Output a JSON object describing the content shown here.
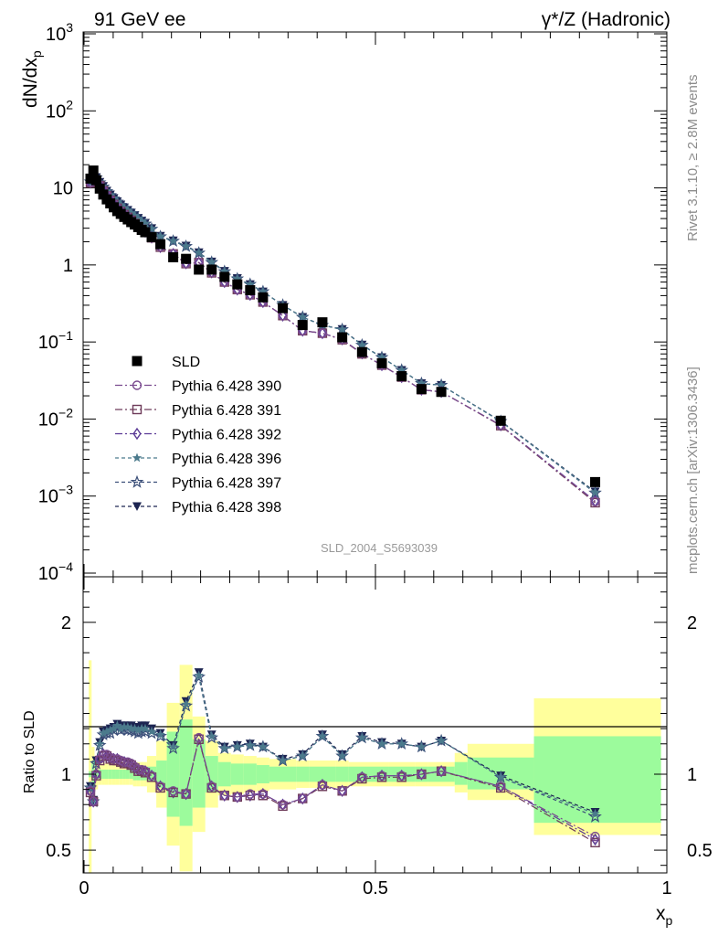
{
  "header": {
    "left_title": "91 GeV ee",
    "right_title": "γ*/Z (Hadronic)"
  },
  "side_text": {
    "rivet": "Rivet 3.1.10, ≥ 2.8M events",
    "mcplots": "mcplots.cern.ch [arXiv:1306.3436]"
  },
  "watermark": "SLD_2004_S5693039",
  "axes": {
    "ylabel_main": "dN/dx",
    "ylabel_main_sub": "p",
    "ylabel_ratio": "Ratio to SLD",
    "xlabel": "x",
    "xlabel_sub": "p",
    "x_ticks": [
      "0",
      "0.5",
      "1"
    ],
    "y_main_ticks": [
      {
        "base": "10",
        "exp": "3"
      },
      {
        "base": "10",
        "exp": "2"
      },
      {
        "base": "10",
        "exp": ""
      },
      {
        "base": "1",
        "exp": ""
      },
      {
        "base": "10",
        "exp": "−1"
      },
      {
        "base": "10",
        "exp": "−2"
      },
      {
        "base": "10",
        "exp": "−3"
      },
      {
        "base": "10",
        "exp": "−4"
      }
    ],
    "y_ratio_ticks": [
      "2",
      "1",
      "0.5"
    ]
  },
  "legend": [
    {
      "label": "SLD",
      "marker": "filled-square",
      "color": "#000000",
      "dash": ""
    },
    {
      "label": "Pythia 6.428 390",
      "marker": "open-circle",
      "color": "#7a4a8f",
      "dash": "8,3,2,3"
    },
    {
      "label": "Pythia 6.428 391",
      "marker": "open-square",
      "color": "#6e3b5a",
      "dash": "8,3,2,3"
    },
    {
      "label": "Pythia 6.428 392",
      "marker": "open-diamond",
      "color": "#5b3a96",
      "dash": "8,3,2,3"
    },
    {
      "label": "Pythia 6.428 396",
      "marker": "filled-star",
      "color": "#4b7a8c",
      "dash": "4,3"
    },
    {
      "label": "Pythia 6.428 397",
      "marker": "open-star",
      "color": "#3a4e78",
      "dash": "4,3"
    },
    {
      "label": "Pythia 6.428 398",
      "marker": "filled-triangle-down",
      "color": "#1c2451",
      "dash": "4,3"
    }
  ],
  "chart_data": {
    "type": "scatter",
    "title": "91 GeV ee",
    "xlabel": "x_p",
    "ylabel": "dN/dx_p",
    "xlim": [
      0,
      1
    ],
    "ylim": [
      0.0001,
      1000
    ],
    "y_scale": "log",
    "ratio_ylabel": "Ratio to SLD",
    "ratio_ylim": [
      0.35,
      2.3
    ],
    "x": [
      0.011,
      0.016,
      0.021,
      0.027,
      0.033,
      0.039,
      0.045,
      0.051,
      0.057,
      0.063,
      0.069,
      0.075,
      0.081,
      0.087,
      0.093,
      0.099,
      0.105,
      0.116,
      0.131,
      0.153,
      0.175,
      0.197,
      0.219,
      0.241,
      0.263,
      0.285,
      0.307,
      0.341,
      0.375,
      0.409,
      0.443,
      0.477,
      0.511,
      0.545,
      0.579,
      0.613,
      0.715,
      0.877
    ],
    "series": [
      {
        "name": "SLD",
        "values": [
          13.2,
          16.8,
          12.6,
          9.8,
          8.2,
          7.1,
          6.3,
          5.6,
          5.0,
          4.6,
          4.2,
          3.9,
          3.6,
          3.35,
          3.1,
          2.85,
          2.66,
          2.3,
          1.86,
          1.26,
          1.2,
          0.87,
          0.87,
          0.7,
          0.56,
          0.47,
          0.38,
          0.275,
          0.166,
          0.18,
          0.115,
          0.074,
          0.053,
          0.036,
          0.0245,
          0.0225,
          0.0095,
          0.00152
        ]
      },
      {
        "name": "Pythia 6.428 390",
        "values": [
          11.8,
          13.8,
          12.6,
          10.8,
          9.3,
          8.0,
          7.0,
          6.2,
          5.5,
          5.0,
          4.55,
          4.2,
          3.85,
          3.5,
          3.2,
          2.95,
          2.72,
          2.28,
          1.72,
          1.4,
          1.05,
          1.08,
          0.8,
          0.6,
          0.48,
          0.41,
          0.33,
          0.22,
          0.14,
          0.13,
          0.108,
          0.071,
          0.05,
          0.035,
          0.024,
          0.0225,
          0.0083,
          0.00085
        ]
      },
      {
        "name": "Pythia 6.428 391",
        "values": [
          11.6,
          13.7,
          12.5,
          10.7,
          9.2,
          7.9,
          6.9,
          6.1,
          5.45,
          4.95,
          4.5,
          4.15,
          3.8,
          3.45,
          3.15,
          2.9,
          2.68,
          2.25,
          1.7,
          1.39,
          1.04,
          1.07,
          0.79,
          0.6,
          0.48,
          0.41,
          0.33,
          0.22,
          0.14,
          0.13,
          0.107,
          0.07,
          0.05,
          0.035,
          0.024,
          0.0225,
          0.0082,
          0.00082
        ]
      },
      {
        "name": "Pythia 6.428 392",
        "values": [
          11.7,
          13.8,
          12.6,
          10.8,
          9.25,
          7.95,
          6.95,
          6.15,
          5.5,
          4.98,
          4.52,
          4.18,
          3.82,
          3.48,
          3.18,
          2.92,
          2.7,
          2.27,
          1.71,
          1.39,
          1.05,
          1.07,
          0.8,
          0.6,
          0.48,
          0.41,
          0.33,
          0.22,
          0.14,
          0.13,
          0.108,
          0.071,
          0.05,
          0.035,
          0.024,
          0.0225,
          0.0083,
          0.00086
        ]
      },
      {
        "name": "Pythia 6.428 396",
        "values": [
          12.1,
          13.9,
          13.6,
          11.8,
          10.4,
          9.1,
          8.1,
          7.3,
          6.6,
          6.0,
          5.5,
          5.1,
          4.7,
          4.35,
          4.0,
          3.7,
          3.45,
          2.95,
          2.35,
          2.05,
          1.75,
          1.44,
          1.09,
          0.82,
          0.66,
          0.56,
          0.45,
          0.3,
          0.21,
          0.165,
          0.145,
          0.091,
          0.063,
          0.043,
          0.029,
          0.0275,
          0.0093,
          0.00112
        ]
      },
      {
        "name": "Pythia 6.428 397",
        "values": [
          12.0,
          13.8,
          13.5,
          11.7,
          10.3,
          9.0,
          8.0,
          7.2,
          6.55,
          5.95,
          5.45,
          5.05,
          4.65,
          4.3,
          3.95,
          3.65,
          3.4,
          2.92,
          2.33,
          2.04,
          1.74,
          1.43,
          1.08,
          0.82,
          0.66,
          0.56,
          0.45,
          0.3,
          0.21,
          0.165,
          0.145,
          0.091,
          0.063,
          0.043,
          0.029,
          0.0275,
          0.0093,
          0.0011
        ]
      },
      {
        "name": "Pythia 6.428 398",
        "values": [
          12.2,
          14.0,
          13.7,
          11.9,
          10.5,
          9.15,
          8.15,
          7.35,
          6.65,
          6.05,
          5.55,
          5.15,
          4.75,
          4.4,
          4.05,
          3.75,
          3.5,
          2.98,
          2.37,
          2.07,
          1.77,
          1.45,
          1.1,
          0.83,
          0.67,
          0.56,
          0.45,
          0.3,
          0.21,
          0.166,
          0.146,
          0.092,
          0.063,
          0.043,
          0.029,
          0.0275,
          0.0094,
          0.00114
        ]
      }
    ],
    "ratio_series": [
      {
        "name": "Pythia 6.428 390",
        "values": [
          0.89,
          0.82,
          1.0,
          1.1,
          1.13,
          1.13,
          1.11,
          1.1,
          1.1,
          1.09,
          1.08,
          1.08,
          1.07,
          1.05,
          1.03,
          1.03,
          1.02,
          0.99,
          0.92,
          0.89,
          0.87,
          1.24,
          0.92,
          0.86,
          0.85,
          0.87,
          0.87,
          0.8,
          0.84,
          0.93,
          0.89,
          0.98,
          0.99,
          0.99,
          1.0,
          1.02,
          0.92,
          0.59
        ]
      },
      {
        "name": "Pythia 6.428 391",
        "values": [
          0.88,
          0.82,
          0.99,
          1.09,
          1.12,
          1.12,
          1.1,
          1.09,
          1.09,
          1.08,
          1.07,
          1.07,
          1.06,
          1.04,
          1.02,
          1.02,
          1.01,
          0.98,
          0.91,
          0.88,
          0.87,
          1.23,
          0.91,
          0.86,
          0.85,
          0.86,
          0.86,
          0.79,
          0.84,
          0.92,
          0.89,
          0.97,
          0.98,
          0.98,
          1.0,
          1.02,
          0.91,
          0.55
        ]
      },
      {
        "name": "Pythia 6.428 392",
        "values": [
          0.89,
          0.82,
          1.0,
          1.1,
          1.13,
          1.12,
          1.1,
          1.1,
          1.1,
          1.08,
          1.08,
          1.07,
          1.06,
          1.04,
          1.03,
          1.02,
          1.02,
          0.99,
          0.92,
          0.88,
          0.87,
          1.23,
          0.92,
          0.86,
          0.85,
          0.86,
          0.87,
          0.8,
          0.84,
          0.93,
          0.89,
          0.98,
          0.99,
          0.99,
          1.0,
          1.02,
          0.92,
          0.57
        ]
      },
      {
        "name": "Pythia 6.428 396",
        "values": [
          0.91,
          0.83,
          1.08,
          1.2,
          1.27,
          1.28,
          1.29,
          1.3,
          1.32,
          1.3,
          1.31,
          1.31,
          1.3,
          1.3,
          1.29,
          1.3,
          1.3,
          1.28,
          1.26,
          1.18,
          1.46,
          1.65,
          1.25,
          1.17,
          1.18,
          1.19,
          1.18,
          1.09,
          1.12,
          1.25,
          1.12,
          1.24,
          1.2,
          1.2,
          1.18,
          1.22,
          0.98,
          0.74
        ]
      },
      {
        "name": "Pythia 6.428 397",
        "values": [
          0.91,
          0.82,
          1.07,
          1.19,
          1.26,
          1.27,
          1.27,
          1.29,
          1.31,
          1.29,
          1.3,
          1.29,
          1.29,
          1.28,
          1.27,
          1.28,
          1.28,
          1.27,
          1.25,
          1.17,
          1.45,
          1.64,
          1.24,
          1.17,
          1.18,
          1.19,
          1.18,
          1.09,
          1.12,
          1.25,
          1.12,
          1.24,
          1.2,
          1.2,
          1.18,
          1.22,
          0.98,
          0.72
        ]
      },
      {
        "name": "Pythia 6.428 398",
        "values": [
          0.92,
          0.83,
          1.09,
          1.21,
          1.28,
          1.29,
          1.3,
          1.31,
          1.33,
          1.32,
          1.32,
          1.32,
          1.32,
          1.31,
          1.31,
          1.32,
          1.32,
          1.3,
          1.27,
          1.19,
          1.48,
          1.67,
          1.26,
          1.18,
          1.19,
          1.2,
          1.18,
          1.1,
          1.13,
          1.26,
          1.13,
          1.25,
          1.21,
          1.2,
          1.18,
          1.22,
          0.99,
          0.75
        ]
      }
    ],
    "uncertainty_bands": {
      "edges": [
        0.008,
        0.013,
        0.018,
        0.024,
        0.03,
        0.036,
        0.042,
        0.048,
        0.054,
        0.06,
        0.066,
        0.072,
        0.078,
        0.084,
        0.09,
        0.096,
        0.102,
        0.108,
        0.124,
        0.142,
        0.164,
        0.186,
        0.208,
        0.23,
        0.252,
        0.274,
        0.296,
        0.318,
        0.364,
        0.386,
        0.432,
        0.454,
        0.5,
        0.522,
        0.568,
        0.59,
        0.636,
        0.658,
        0.772,
        0.99
      ],
      "inner_lo": [
        0.98,
        0.92,
        0.97,
        0.97,
        0.97,
        0.97,
        0.97,
        0.97,
        0.97,
        0.97,
        0.97,
        0.97,
        0.97,
        0.96,
        0.96,
        0.96,
        0.96,
        0.95,
        0.91,
        0.72,
        0.66,
        0.78,
        0.88,
        0.92,
        0.93,
        0.93,
        0.94,
        0.95,
        0.95,
        0.95,
        0.95,
        0.95,
        0.95,
        0.95,
        0.95,
        0.95,
        0.93,
        0.9,
        0.68,
        0.6
      ],
      "inner_hi": [
        1.02,
        1.08,
        1.03,
        1.03,
        1.03,
        1.03,
        1.03,
        1.03,
        1.03,
        1.03,
        1.03,
        1.03,
        1.03,
        1.04,
        1.04,
        1.04,
        1.04,
        1.05,
        1.09,
        1.28,
        1.36,
        1.23,
        1.12,
        1.08,
        1.07,
        1.07,
        1.06,
        1.05,
        1.05,
        1.05,
        1.05,
        1.05,
        1.05,
        1.05,
        1.05,
        1.05,
        1.08,
        1.11,
        1.25,
        1.25
      ],
      "outer_lo": [
        0.3,
        0.83,
        0.9,
        0.93,
        0.93,
        0.93,
        0.93,
        0.93,
        0.93,
        0.93,
        0.93,
        0.93,
        0.93,
        0.92,
        0.92,
        0.92,
        0.92,
        0.88,
        0.78,
        0.53,
        0.36,
        0.62,
        0.78,
        0.86,
        0.87,
        0.88,
        0.89,
        0.9,
        0.91,
        0.91,
        0.91,
        0.92,
        0.92,
        0.92,
        0.92,
        0.92,
        0.88,
        0.83,
        0.6,
        0.6
      ],
      "outer_hi": [
        1.75,
        1.18,
        1.1,
        1.07,
        1.07,
        1.07,
        1.07,
        1.07,
        1.07,
        1.07,
        1.07,
        1.07,
        1.07,
        1.08,
        1.08,
        1.08,
        1.08,
        1.12,
        1.22,
        1.47,
        1.72,
        1.38,
        1.22,
        1.14,
        1.13,
        1.12,
        1.11,
        1.1,
        1.09,
        1.09,
        1.09,
        1.08,
        1.08,
        1.08,
        1.08,
        1.08,
        1.14,
        1.2,
        1.5,
        1.5
      ],
      "colors": {
        "inner": "#9cfb9c",
        "outer": "#ffff9c"
      }
    }
  }
}
